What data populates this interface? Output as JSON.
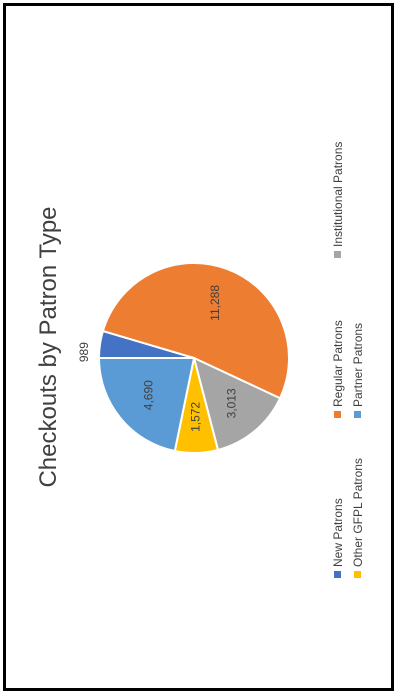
{
  "chart_data": {
    "type": "pie",
    "title": "Checkouts by Patron Type",
    "slices": [
      {
        "label": "New Patrons",
        "value": 989,
        "display": "989",
        "color": "#4472C4"
      },
      {
        "label": "Regular Patrons",
        "value": 11288,
        "display": "11,288",
        "color": "#ED7D31"
      },
      {
        "label": "Institutional Patrons",
        "value": 3013,
        "display": "3,013",
        "color": "#A5A5A5"
      },
      {
        "label": "Other GFPL Patrons",
        "value": 1572,
        "display": "1,572",
        "color": "#FFC000"
      },
      {
        "label": "Partner Patrons",
        "value": 4690,
        "display": "4,690",
        "color": "#5B9BD5"
      }
    ],
    "legend_position": "bottom"
  }
}
